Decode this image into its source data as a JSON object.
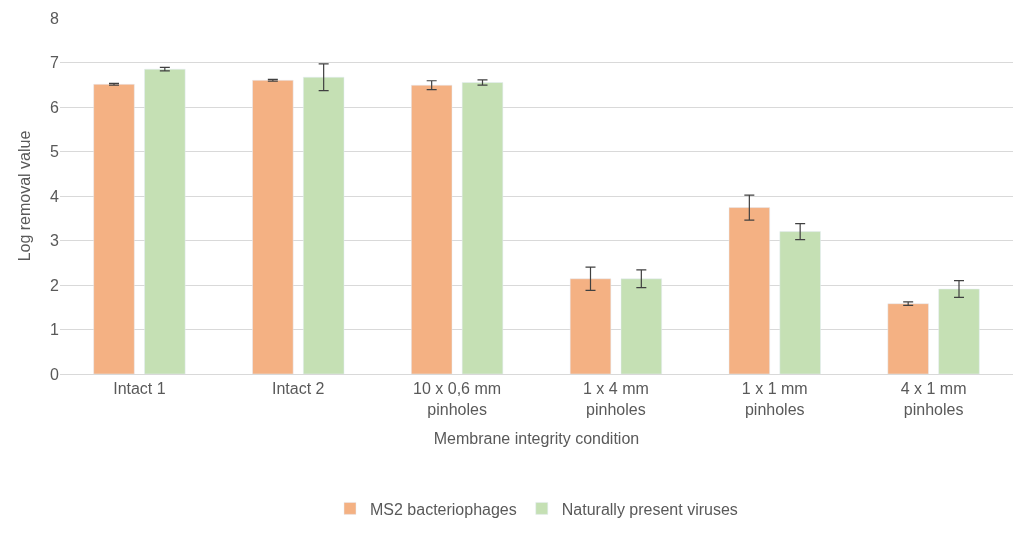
{
  "chart_data": {
    "type": "bar",
    "xlabel": "Membrane integrity condition",
    "ylabel": "Log removal value",
    "categories": [
      "Intact 1",
      "Intact 2",
      "10 x 0,6 mm\npinholes",
      "1 x 4 mm\npinholes",
      "1 x 1 mm\npinholes",
      "4 x 1 mm\npinholes"
    ],
    "series": [
      {
        "name": "MS2 bacteriophages",
        "color": "#f4b183",
        "values": [
          6.51,
          6.6,
          6.49,
          2.14,
          3.74,
          1.58
        ],
        "errors": [
          0.02,
          0.02,
          0.1,
          0.26,
          0.28,
          0.04
        ]
      },
      {
        "name": "Naturally present viruses",
        "color": "#c5e0b4",
        "values": [
          6.85,
          6.67,
          6.55,
          2.14,
          3.2,
          1.91
        ],
        "errors": [
          0.04,
          0.3,
          0.06,
          0.2,
          0.18,
          0.19
        ]
      }
    ],
    "ylim": [
      0,
      8
    ],
    "yticks": [
      0,
      1,
      2,
      3,
      4,
      5,
      6,
      7,
      8
    ],
    "grid": "y",
    "legend": "bottom"
  }
}
